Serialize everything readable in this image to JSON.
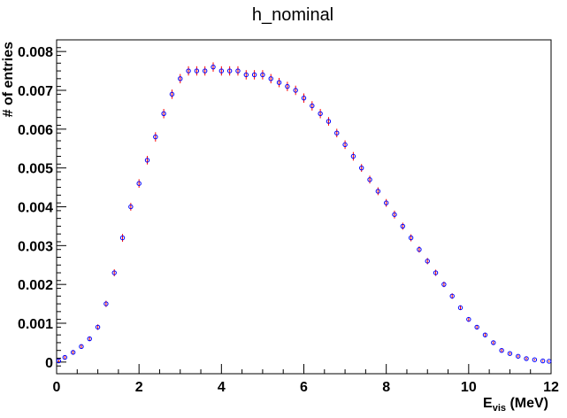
{
  "chart_data": {
    "type": "scatter",
    "title": "h_nominal",
    "xlabel": {
      "main": "E",
      "sub": "vis",
      "rest": " (MeV)"
    },
    "ylabel": "# of entries",
    "xlim": [
      0,
      12
    ],
    "ylim": [
      -0.0003,
      0.0083
    ],
    "x_ticks": [
      "0",
      "2",
      "4",
      "6",
      "8",
      "10",
      "12"
    ],
    "y_ticks": [
      "0",
      "0.001",
      "0.002",
      "0.003",
      "0.004",
      "0.005",
      "0.006",
      "0.007",
      "0.008"
    ],
    "grid": false,
    "colors": {
      "marker": "#0000ff",
      "error_bar": "#ff0000",
      "axis": "#000000"
    },
    "series": [
      {
        "marker": "open-circle",
        "x": [
          0.05,
          0.2,
          0.4,
          0.6,
          0.8,
          1.0,
          1.2,
          1.4,
          1.6,
          1.8,
          2.0,
          2.2,
          2.4,
          2.6,
          2.8,
          3.0,
          3.2,
          3.4,
          3.6,
          3.8,
          4.0,
          4.2,
          4.4,
          4.6,
          4.8,
          5.0,
          5.2,
          5.4,
          5.6,
          5.8,
          6.0,
          6.2,
          6.4,
          6.6,
          6.8,
          7.0,
          7.2,
          7.4,
          7.6,
          7.8,
          8.0,
          8.2,
          8.4,
          8.6,
          8.8,
          9.0,
          9.2,
          9.4,
          9.6,
          9.8,
          10.0,
          10.2,
          10.4,
          10.6,
          10.8,
          11.0,
          11.2,
          11.4,
          11.6,
          11.8,
          11.95
        ],
        "y": [
          3e-05,
          0.00012,
          0.00025,
          0.0004,
          0.0006,
          0.0009,
          0.0015,
          0.0023,
          0.0032,
          0.004,
          0.0046,
          0.0052,
          0.0058,
          0.0064,
          0.0069,
          0.0073,
          0.0075,
          0.0075,
          0.0075,
          0.0076,
          0.0075,
          0.0075,
          0.0075,
          0.0074,
          0.0074,
          0.0074,
          0.0073,
          0.0072,
          0.0071,
          0.007,
          0.0068,
          0.0066,
          0.0064,
          0.0062,
          0.0059,
          0.0056,
          0.0053,
          0.005,
          0.0047,
          0.0044,
          0.0041,
          0.0038,
          0.0035,
          0.0032,
          0.0029,
          0.0026,
          0.0023,
          0.002,
          0.0017,
          0.0014,
          0.0011,
          0.0009,
          0.0007,
          0.0005,
          0.0003,
          0.00022,
          0.00015,
          9e-05,
          6e-05,
          3e-05,
          2e-05
        ],
        "error": [
          3e-05,
          5e-05,
          6e-05,
          6e-05,
          6e-05,
          7e-05,
          8e-05,
          9e-05,
          0.0001,
          0.0001,
          0.00011,
          0.00011,
          0.00012,
          0.00012,
          0.00012,
          0.00012,
          0.00012,
          0.00012,
          0.00012,
          0.00012,
          0.00012,
          0.00012,
          0.00012,
          0.00012,
          0.00012,
          0.00012,
          0.00012,
          0.00012,
          0.00012,
          0.00012,
          0.00012,
          0.00012,
          0.00012,
          0.00011,
          0.00011,
          0.00011,
          0.00011,
          0.0001,
          0.0001,
          0.0001,
          0.0001,
          0.0001,
          9e-05,
          9e-05,
          8e-05,
          8e-05,
          8e-05,
          7e-05,
          7e-05,
          6e-05,
          6e-05,
          5e-05,
          5e-05,
          4e-05,
          4e-05,
          3e-05,
          3e-05,
          3e-05,
          2e-05,
          2e-05,
          2e-05
        ]
      }
    ]
  }
}
